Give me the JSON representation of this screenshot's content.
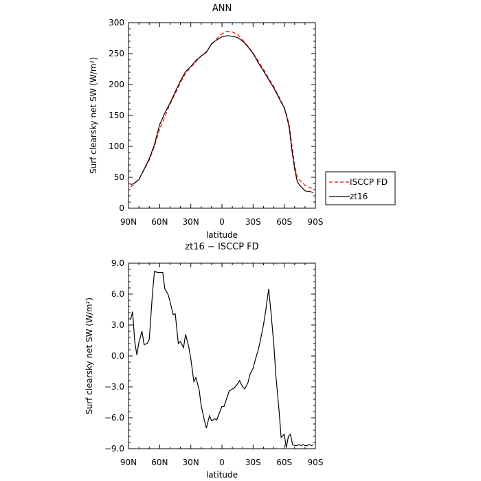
{
  "chart_data": [
    {
      "type": "line",
      "title": "ANN",
      "xlabel": "latitude",
      "ylabel": "Surf clearsky net SW (W/m²)",
      "xlim": [
        90,
        -90
      ],
      "ylim": [
        0,
        300
      ],
      "x_ticks": [
        90,
        60,
        30,
        0,
        -30,
        -60,
        -90
      ],
      "x_tick_labels": [
        "90N",
        "60N",
        "30N",
        "0",
        "30S",
        "60S",
        "90S"
      ],
      "y_ticks": [
        0,
        50,
        100,
        150,
        200,
        250,
        300
      ],
      "y_tick_labels": [
        "0",
        "50",
        "100",
        "150",
        "200",
        "250",
        "300"
      ],
      "legend": {
        "placement": "outside-right",
        "entries": [
          "ISCCP FD",
          "zt16"
        ]
      },
      "series": [
        {
          "name": "ISCCP FD",
          "color": "#ff0000",
          "dash": "dashed",
          "x": [
            88,
            85,
            80,
            75,
            70,
            65,
            60,
            55,
            50,
            45,
            40,
            35,
            30,
            25,
            20,
            15,
            10,
            5,
            0,
            -5,
            -10,
            -15,
            -20,
            -25,
            -30,
            -35,
            -40,
            -45,
            -50,
            -55,
            -60,
            -62.5,
            -65,
            -67.5,
            -70,
            -72.5,
            -75,
            -80,
            -85,
            -88
          ],
          "y": [
            34,
            38,
            47,
            62,
            78,
            100,
            128,
            148,
            168,
            185,
            203,
            218,
            228,
            237,
            246,
            253,
            265,
            274,
            282,
            286,
            285,
            281,
            272,
            262,
            251,
            238,
            225,
            210,
            196,
            180,
            163,
            150,
            133,
            100,
            70,
            50,
            45,
            37,
            33,
            32
          ]
        },
        {
          "name": "zt16",
          "color": "#000000",
          "dash": "solid",
          "x": [
            88,
            85,
            80,
            75,
            70,
            65,
            60,
            55,
            50,
            45,
            40,
            35,
            30,
            25,
            20,
            15,
            10,
            5,
            0,
            -5,
            -10,
            -15,
            -20,
            -25,
            -30,
            -35,
            -40,
            -45,
            -50,
            -55,
            -60,
            -62.5,
            -65,
            -67.5,
            -70,
            -72.5,
            -75,
            -80,
            -85,
            -88
          ],
          "y": [
            38,
            40,
            46,
            63,
            80,
            103,
            135,
            154,
            170,
            188,
            206,
            221,
            229,
            239,
            246,
            252,
            266,
            272,
            277,
            279,
            278,
            276,
            270,
            261,
            250,
            235,
            222,
            208,
            194,
            178,
            162,
            148,
            128,
            92,
            63,
            43,
            37,
            28,
            27,
            25
          ]
        }
      ]
    },
    {
      "type": "line",
      "title": "zt16 − ISCCP FD",
      "xlabel": "latitude",
      "ylabel": "Surf clearsky net SW (W/m²)",
      "xlim": [
        90,
        -90
      ],
      "ylim": [
        -9,
        9
      ],
      "x_ticks": [
        90,
        60,
        30,
        0,
        -30,
        -60,
        -90
      ],
      "x_tick_labels": [
        "90N",
        "60N",
        "30N",
        "0",
        "30S",
        "60S",
        "90S"
      ],
      "y_ticks": [
        -9,
        -6,
        -3,
        0,
        3,
        6,
        9
      ],
      "y_tick_labels": [
        "−9.0",
        "−6.0",
        "−3.0",
        "0.0",
        "3.0",
        "6.0",
        "9.0"
      ],
      "series": [
        {
          "name": "zt16 − ISCCP FD",
          "color": "#000000",
          "dash": "solid",
          "x": [
            88,
            86,
            84,
            82,
            80,
            77,
            75,
            72,
            70,
            67,
            65,
            62,
            60,
            57,
            55,
            52,
            50,
            47,
            45,
            42,
            40,
            37,
            35,
            32,
            30,
            27,
            25,
            22,
            20,
            17,
            15,
            12,
            10,
            7,
            5,
            2,
            0,
            -2,
            -5,
            -7,
            -10,
            -12,
            -15,
            -17,
            -20,
            -22,
            -25,
            -27,
            -30,
            -32,
            -35,
            -37,
            -40,
            -42,
            -45,
            -47,
            -50,
            -52,
            -55,
            -57,
            -60,
            -62,
            -64,
            -66,
            -68,
            -70,
            -72,
            -74,
            -76,
            -78,
            -80,
            -82,
            -84,
            -86,
            -88
          ],
          "y": [
            3.5,
            4.3,
            1.4,
            0.1,
            1.3,
            2.4,
            1.1,
            1.2,
            1.6,
            6.0,
            8.2,
            8.1,
            8.1,
            8.1,
            6.5,
            6.0,
            5.3,
            4.0,
            4.1,
            1.2,
            1.4,
            0.8,
            2.1,
            0.9,
            -0.3,
            -2.5,
            -2.1,
            -3.3,
            -4.8,
            -6.2,
            -7.0,
            -5.8,
            -6.3,
            -6.1,
            -6.2,
            -5.4,
            -4.9,
            -4.9,
            -4.0,
            -3.4,
            -3.2,
            -3.1,
            -2.7,
            -2.4,
            -3.0,
            -3.2,
            -2.6,
            -1.8,
            -1.2,
            -0.4,
            0.6,
            1.5,
            3.0,
            4.3,
            6.5,
            4.5,
            1.0,
            -2.0,
            -5.3,
            -7.9,
            -7.6,
            -8.9,
            -7.8,
            -7.6,
            -8.6,
            -8.7,
            -8.7,
            -8.6,
            -8.7,
            -8.6,
            -8.7,
            -8.7,
            -8.6,
            -8.7,
            -8.6
          ]
        }
      ]
    }
  ]
}
